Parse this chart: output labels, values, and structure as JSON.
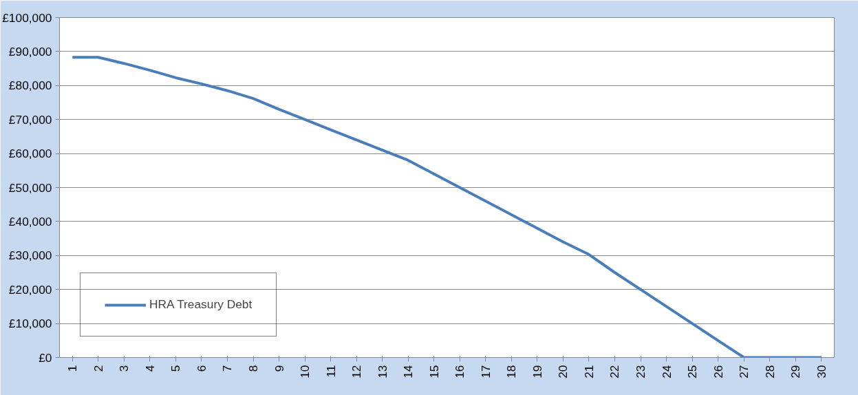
{
  "chart_data": {
    "type": "line",
    "categories": [
      "1",
      "2",
      "3",
      "4",
      "5",
      "6",
      "7",
      "8",
      "9",
      "10",
      "11",
      "12",
      "13",
      "14",
      "15",
      "16",
      "17",
      "18",
      "19",
      "20",
      "21",
      "22",
      "23",
      "24",
      "25",
      "26",
      "27",
      "28",
      "29",
      "30"
    ],
    "series": [
      {
        "name": "HRA Treasury Debt",
        "color": "#4a7ebb",
        "values": [
          88300,
          88300,
          86500,
          84500,
          82300,
          80500,
          78500,
          76200,
          73000,
          70000,
          67000,
          64000,
          61000,
          58000,
          54000,
          50000,
          46000,
          42000,
          38000,
          34000,
          30300,
          25000,
          20000,
          15000,
          10000,
          5000,
          0,
          0,
          0,
          0
        ]
      }
    ],
    "ylim": [
      0,
      100000
    ],
    "yticks": [
      {
        "value": 0,
        "label": "£0"
      },
      {
        "value": 10000,
        "label": "£10,000"
      },
      {
        "value": 20000,
        "label": "£20,000"
      },
      {
        "value": 30000,
        "label": "£30,000"
      },
      {
        "value": 40000,
        "label": "£40,000"
      },
      {
        "value": 50000,
        "label": "£50,000"
      },
      {
        "value": 60000,
        "label": "£60,000"
      },
      {
        "value": 70000,
        "label": "£70,000"
      },
      {
        "value": 80000,
        "label": "£80,000"
      },
      {
        "value": 90000,
        "label": "£90,000"
      },
      {
        "value": 100000,
        "label": "£100,000"
      }
    ],
    "grid": "y",
    "legend": "bottom left",
    "marker": "none",
    "line_style": "solid"
  }
}
